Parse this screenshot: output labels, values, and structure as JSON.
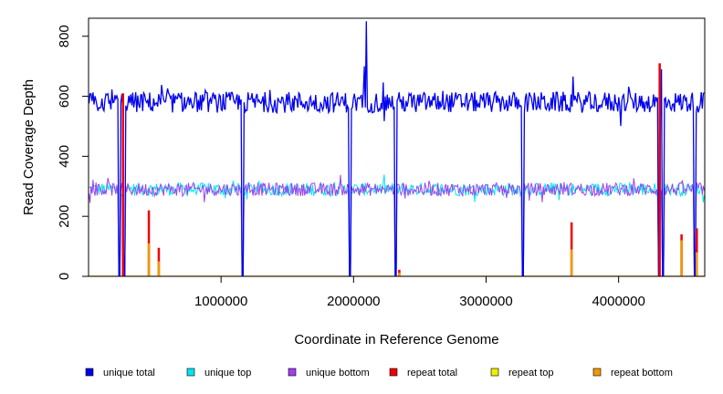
{
  "chart_data": {
    "type": "line",
    "title": "",
    "xlabel": "Coordinate in Reference Genome",
    "ylabel": "Read Coverage Depth",
    "xlim": [
      0,
      4650000
    ],
    "ylim": [
      0,
      860
    ],
    "x_ticks": [
      {
        "value": 1000000,
        "label": "1000000"
      },
      {
        "value": 2000000,
        "label": "2000000"
      },
      {
        "value": 3000000,
        "label": "3000000"
      },
      {
        "value": 4000000,
        "label": "4000000"
      }
    ],
    "y_ticks": [
      {
        "value": 0,
        "label": "0"
      },
      {
        "value": 200,
        "label": "200"
      },
      {
        "value": 400,
        "label": "400"
      },
      {
        "value": 600,
        "label": "600"
      },
      {
        "value": 800,
        "label": "800"
      }
    ],
    "grid": false,
    "legend_position": "bottom",
    "series": [
      {
        "name": "unique total",
        "color": "#0000ee",
        "mean": 580,
        "spread": 35
      },
      {
        "name": "unique top",
        "color": "#00e5ee",
        "mean": 290,
        "spread": 22
      },
      {
        "name": "unique bottom",
        "color": "#a040ee",
        "mean": 290,
        "spread": 22
      },
      {
        "name": "repeat total",
        "color": "#ee0000",
        "mean": 0,
        "spread": 0
      },
      {
        "name": "repeat top",
        "color": "#eeee00",
        "mean": 0,
        "spread": 0
      },
      {
        "name": "repeat bottom",
        "color": "#ee9a00",
        "mean": 0,
        "spread": 0
      }
    ],
    "deep_dips_x": [
      230000,
      270000,
      1165000,
      1975000,
      2315000,
      3275000,
      4305000,
      4335000,
      4575000
    ],
    "unique_total_peaks": [
      {
        "x": 2095000,
        "y": 850
      },
      {
        "x": 2080000,
        "y": 700
      },
      {
        "x": 4325000,
        "y": 690
      }
    ],
    "repeat_spikes": [
      {
        "x": 260000,
        "total": 610,
        "bottom": 0
      },
      {
        "x": 455000,
        "total": 220,
        "bottom": 110
      },
      {
        "x": 530000,
        "total": 95,
        "bottom": 50
      },
      {
        "x": 2345000,
        "total": 22,
        "bottom": 12
      },
      {
        "x": 3645000,
        "total": 180,
        "bottom": 90
      },
      {
        "x": 4310000,
        "total": 710,
        "bottom": 0
      },
      {
        "x": 4475000,
        "total": 140,
        "bottom": 120
      },
      {
        "x": 4590000,
        "total": 160,
        "bottom": 80
      }
    ]
  }
}
